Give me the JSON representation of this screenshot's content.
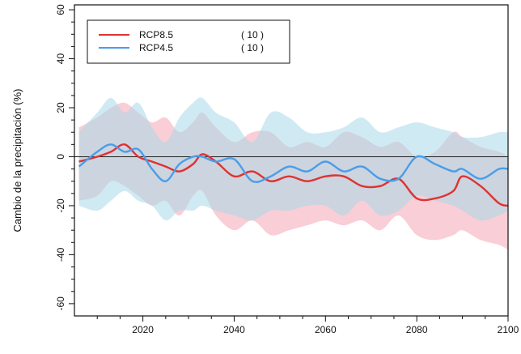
{
  "chart_data": {
    "type": "line",
    "title": "",
    "xlabel": "",
    "ylabel": "Cambio de la precipitación (%)",
    "xlim": [
      2005,
      2100
    ],
    "ylim": [
      -65,
      62
    ],
    "x_ticks": [
      "2020",
      "2040",
      "2060",
      "2080",
      "2100"
    ],
    "x_tick_values": [
      2020,
      2040,
      2060,
      2080,
      2100
    ],
    "y_ticks": [
      "60",
      "40",
      "20",
      "0",
      "-20",
      "-40",
      "-60"
    ],
    "y_tick_values": [
      60,
      40,
      20,
      0,
      -20,
      -40,
      -60
    ],
    "zero_line": true,
    "grid": false,
    "legend_position": "top-left",
    "x": [
      2006,
      2010,
      2013,
      2016,
      2019,
      2022,
      2025,
      2028,
      2031,
      2033,
      2036,
      2040,
      2044,
      2048,
      2052,
      2056,
      2060,
      2064,
      2068,
      2072,
      2076,
      2080,
      2084,
      2088,
      2090,
      2094,
      2098,
      2100
    ],
    "series": [
      {
        "name": "RCP8.5",
        "count": "( 10 )",
        "color": "#dd3333",
        "band_color": "#f4a6b4",
        "values": [
          -2,
          0,
          2,
          5,
          0,
          -2,
          -4,
          -6,
          -3,
          1,
          -2,
          -8,
          -6,
          -10,
          -8,
          -10,
          -8,
          -8,
          -12,
          -12,
          -9,
          -17,
          -17,
          -14,
          -8,
          -12,
          -19,
          -20
        ],
        "upper": [
          12,
          16,
          20,
          22,
          18,
          14,
          16,
          10,
          14,
          18,
          12,
          6,
          10,
          10,
          4,
          6,
          4,
          10,
          8,
          4,
          6,
          0,
          2,
          10,
          8,
          4,
          2,
          0
        ],
        "lower": [
          -18,
          -16,
          -10,
          -12,
          -16,
          -20,
          -18,
          -24,
          -16,
          -14,
          -24,
          -30,
          -26,
          -32,
          -30,
          -28,
          -26,
          -28,
          -26,
          -30,
          -24,
          -32,
          -34,
          -32,
          -30,
          -34,
          -36,
          -38
        ]
      },
      {
        "name": "RCP4.5",
        "count": "( 10 )",
        "color": "#4a9de8",
        "band_color": "#a8d8e8",
        "values": [
          -4,
          2,
          5,
          2,
          3,
          -5,
          -10,
          -3,
          0,
          0,
          -2,
          -1,
          -10,
          -8,
          -4,
          -6,
          -2,
          -6,
          -4,
          -9,
          -9,
          0,
          -3,
          -6,
          -5,
          -9,
          -5,
          -5
        ],
        "upper": [
          10,
          18,
          24,
          18,
          22,
          12,
          6,
          16,
          22,
          24,
          18,
          14,
          6,
          18,
          16,
          10,
          10,
          12,
          16,
          10,
          12,
          14,
          12,
          10,
          8,
          8,
          10,
          10
        ],
        "lower": [
          -20,
          -22,
          -18,
          -14,
          -18,
          -20,
          -26,
          -22,
          -22,
          -20,
          -22,
          -24,
          -26,
          -22,
          -22,
          -20,
          -20,
          -24,
          -18,
          -24,
          -22,
          -16,
          -18,
          -20,
          -22,
          -26,
          -24,
          -22
        ]
      }
    ]
  }
}
